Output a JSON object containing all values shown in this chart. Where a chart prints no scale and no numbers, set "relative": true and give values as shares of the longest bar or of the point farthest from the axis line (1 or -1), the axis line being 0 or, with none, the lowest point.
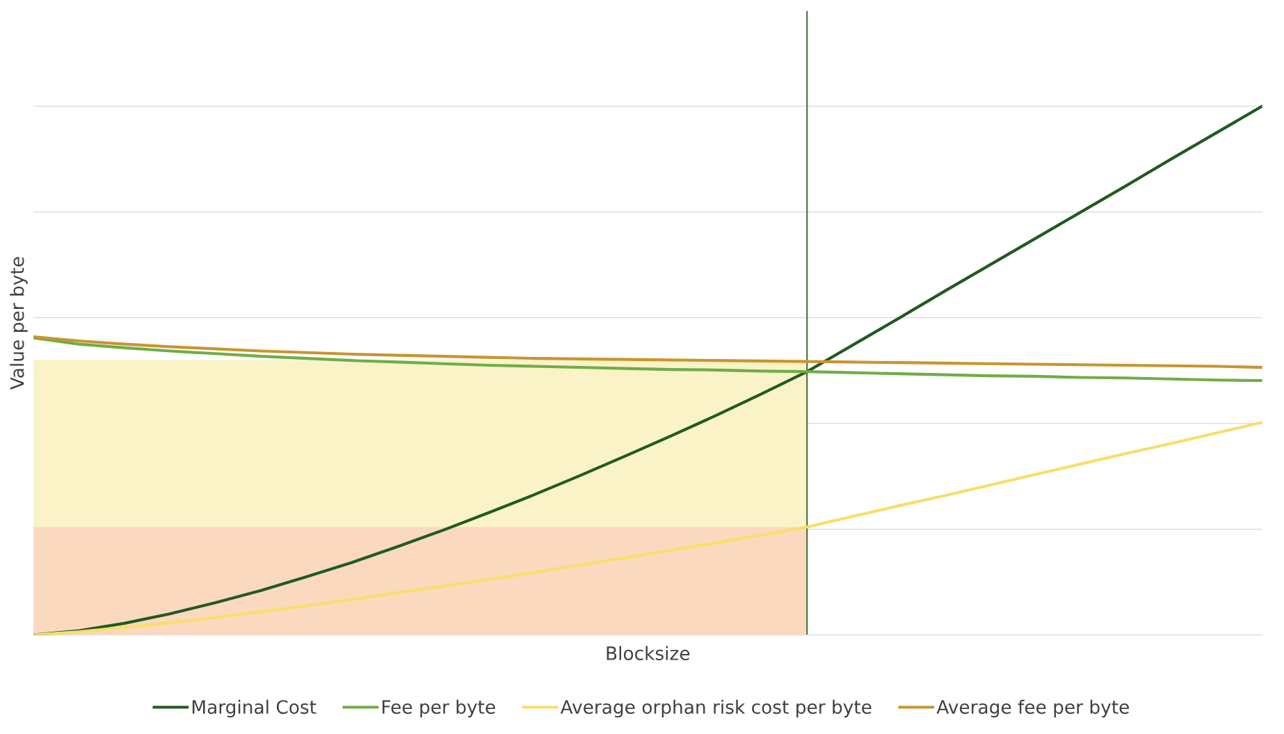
{
  "chart_data": {
    "type": "line",
    "relative": true,
    "xlabel": "Blocksize",
    "ylabel": "Value per byte",
    "categories": [
      null,
      null,
      null,
      null,
      null,
      null,
      null,
      null,
      null,
      null,
      null,
      null,
      null,
      null,
      null,
      null,
      null,
      null,
      null,
      null,
      null,
      null,
      null,
      null,
      null,
      null,
      null,
      null
    ],
    "series": [
      {
        "type": "area",
        "color": "#faf3c8",
        "values": [
          0.52,
          0.52,
          0.52,
          0.52,
          0.52,
          0.52,
          0.52,
          0.52,
          0.52,
          0.52,
          0.52,
          0.52,
          0.52,
          0.52,
          0.52,
          0.52,
          0.52,
          0.52,
          null,
          null,
          null,
          null,
          null,
          null,
          null,
          null,
          null,
          null
        ]
      },
      {
        "type": "area",
        "color": "#fad9bf",
        "values": [
          0.204,
          0.204,
          0.204,
          0.204,
          0.204,
          0.204,
          0.204,
          0.204,
          0.204,
          0.204,
          0.204,
          0.204,
          0.204,
          0.204,
          0.204,
          0.204,
          0.204,
          0.204,
          null,
          null,
          null,
          null,
          null,
          null,
          null,
          null,
          null,
          null
        ]
      },
      {
        "name": "Marginal Cost",
        "color": "#215a20",
        "values": [
          0,
          0.008,
          0.022,
          0.04,
          0.061,
          0.084,
          0.11,
          0.137,
          0.167,
          0.198,
          0.231,
          0.265,
          0.301,
          0.338,
          0.376,
          0.415,
          0.456,
          0.498,
          0.548,
          0.598,
          0.649,
          0.699,
          0.749,
          0.799,
          0.849,
          0.9,
          0.95,
          1.0
        ]
      },
      {
        "name": "Fee per byte",
        "color": "#70ad47",
        "values": [
          0.562,
          0.55,
          0.543,
          0.537,
          0.532,
          0.527,
          0.523,
          0.519,
          0.516,
          0.513,
          0.51,
          0.508,
          0.506,
          0.504,
          0.502,
          0.501,
          0.499,
          0.498,
          0.496,
          0.494,
          0.492,
          0.49,
          0.489,
          0.487,
          0.486,
          0.484,
          0.482,
          0.481
        ]
      },
      {
        "name": "Average orphan risk cost per byte",
        "color": "#f8de6a",
        "values": [
          0,
          0.006,
          0.014,
          0.023,
          0.033,
          0.044,
          0.055,
          0.067,
          0.08,
          0.092,
          0.105,
          0.118,
          0.132,
          0.146,
          0.16,
          0.174,
          0.189,
          0.204,
          0.224,
          0.244,
          0.263,
          0.283,
          0.303,
          0.323,
          0.343,
          0.362,
          0.382,
          0.402
        ]
      },
      {
        "name": "Average fee per byte",
        "color": "#c9952f",
        "values": [
          0.564,
          0.556,
          0.55,
          0.545,
          0.541,
          0.537,
          0.534,
          0.531,
          0.529,
          0.527,
          0.525,
          0.523,
          0.522,
          0.521,
          0.52,
          0.519,
          0.518,
          0.517,
          0.516,
          0.515,
          0.514,
          0.513,
          0.512,
          0.511,
          0.51,
          0.509,
          0.508,
          0.506
        ]
      }
    ],
    "grid": "y",
    "legend": "bottom"
  }
}
